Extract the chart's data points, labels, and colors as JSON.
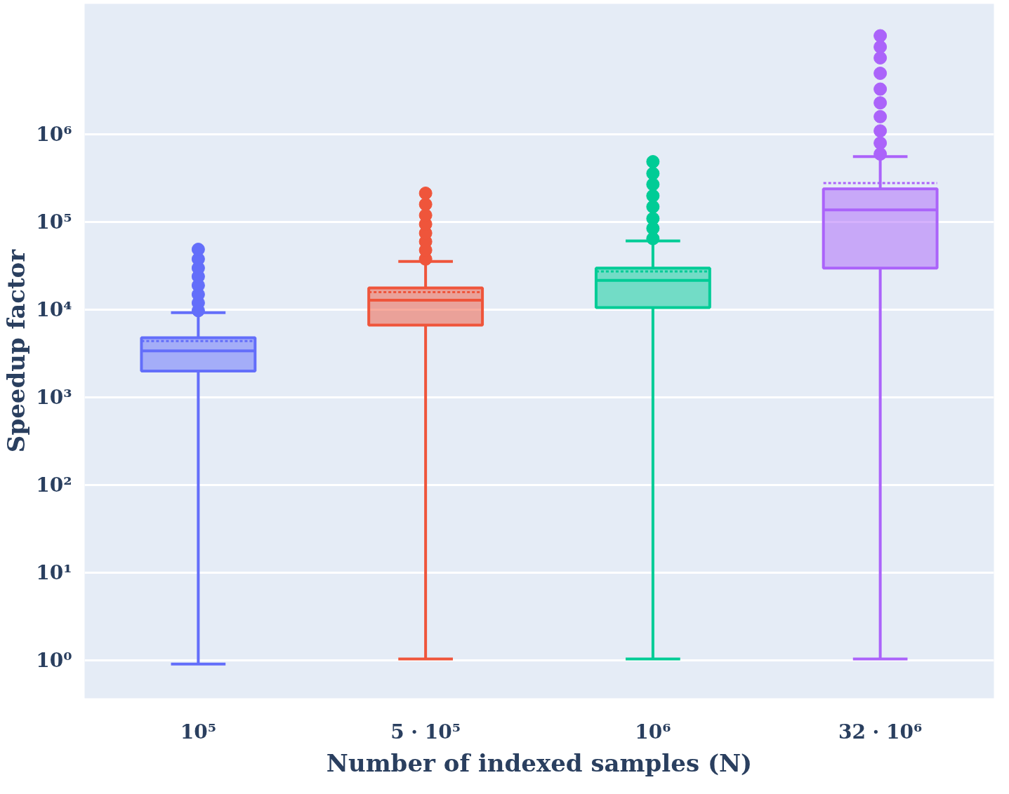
{
  "chart_data": {
    "type": "box",
    "xlabel": "Number of indexed samples (N)",
    "ylabel": "Speedup factor",
    "categories": [
      "10⁵",
      "5 · 10⁵",
      "10⁶",
      "32 · 10⁶"
    ],
    "colors": [
      "#636efa",
      "#ef553b",
      "#00cc96",
      "#ab63fa"
    ],
    "boxes": [
      {
        "low": 0.91,
        "q1": 2000,
        "median": 3400,
        "q3": 4800,
        "high": 9300,
        "mean": 4400,
        "outliers": [
          9800,
          12000,
          15000,
          19000,
          24000,
          30000,
          38000,
          49000
        ]
      },
      {
        "low": 1.04,
        "q1": 6700,
        "median": 12900,
        "q3": 17800,
        "high": 35700,
        "mean": 15900,
        "outliers": [
          38000,
          48000,
          60000,
          75000,
          95000,
          120000,
          160000,
          214000
        ]
      },
      {
        "low": 1.04,
        "q1": 10600,
        "median": 21700,
        "q3": 30000,
        "high": 61000,
        "mean": 27400,
        "outliers": [
          65000,
          85000,
          110000,
          150000,
          200000,
          270000,
          360000,
          490000
        ]
      },
      {
        "low": 1.04,
        "q1": 30000,
        "median": 138000,
        "q3": 240000,
        "high": 560000,
        "mean": 280000,
        "outliers": [
          600000,
          800000,
          1100000,
          1600000,
          2300000,
          3300000,
          5000000,
          7500000,
          10000000,
          13400000
        ]
      }
    ],
    "log": true,
    "ylim": [
      0.37,
      31000000
    ],
    "yticks": [
      {
        "value": 1,
        "label": "10⁰"
      },
      {
        "value": 10,
        "label": "10¹"
      },
      {
        "value": 100,
        "label": "10²"
      },
      {
        "value": 1000,
        "label": "10³"
      },
      {
        "value": 10000,
        "label": "10⁴"
      },
      {
        "value": 100000,
        "label": "10⁵"
      },
      {
        "value": 1000000,
        "label": "10⁶"
      }
    ],
    "grid": "y",
    "marker": "circle"
  }
}
